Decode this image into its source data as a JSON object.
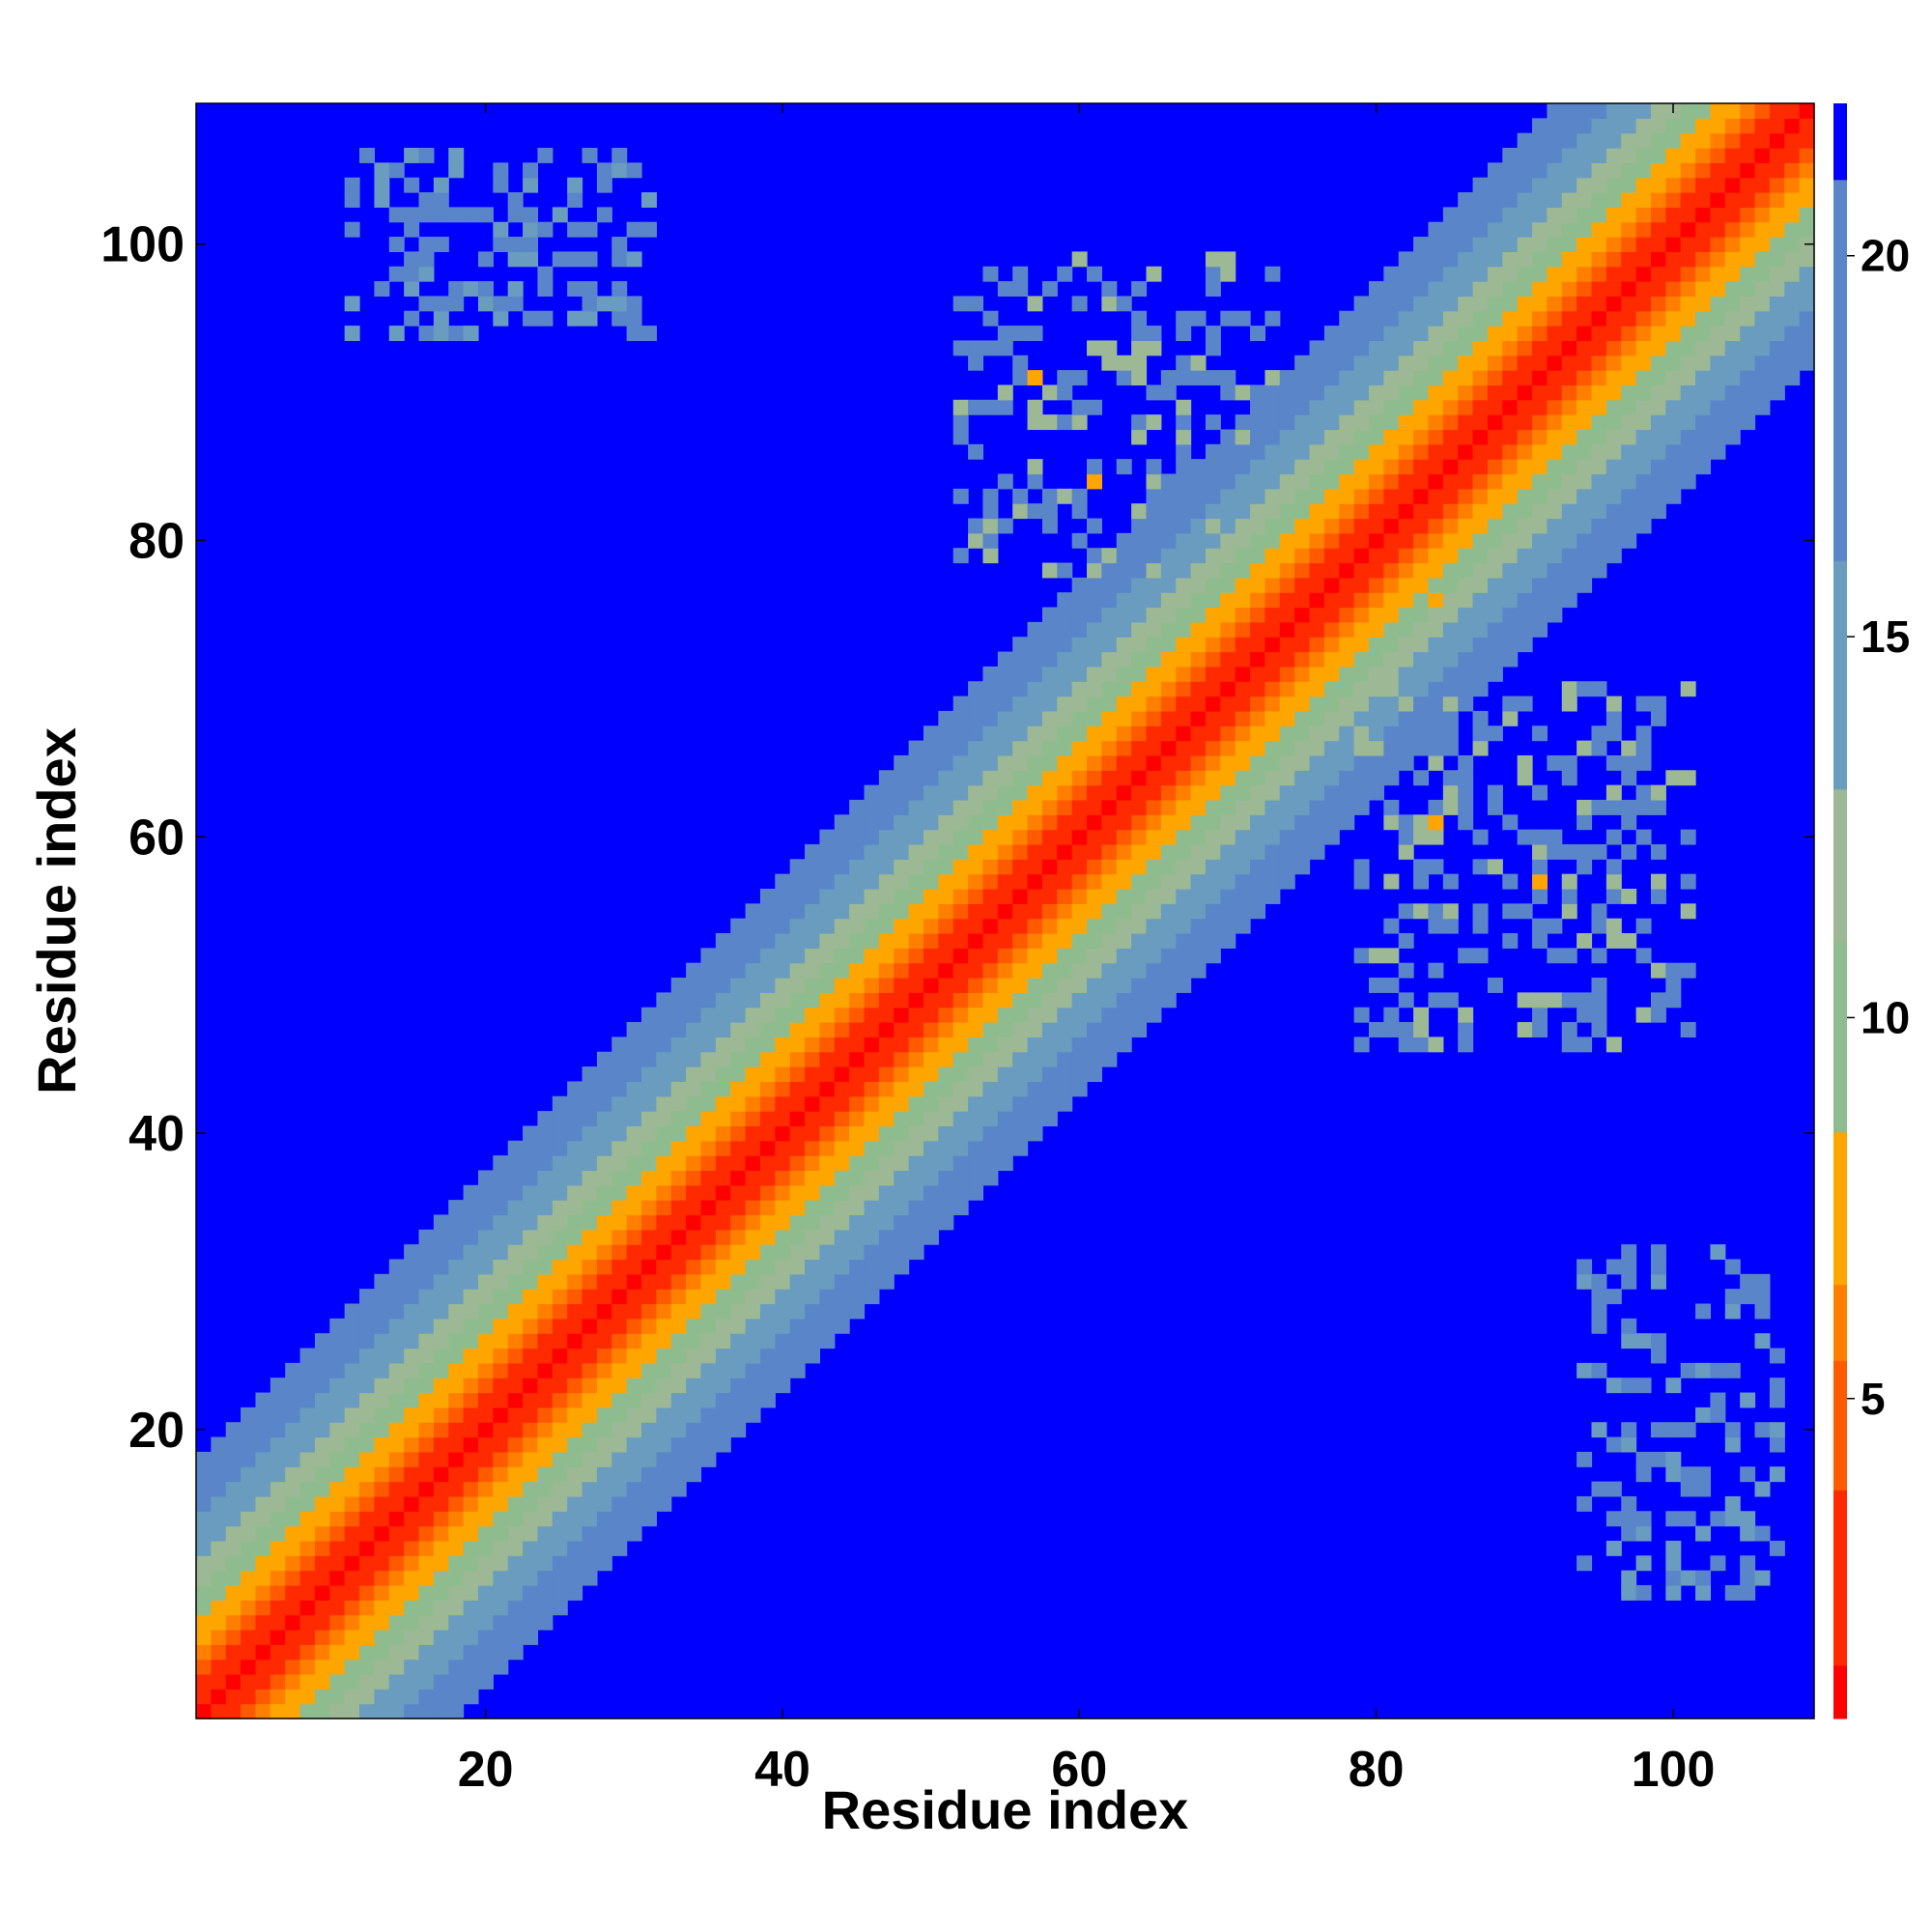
{
  "chart_data": {
    "type": "heatmap",
    "title": "",
    "xlabel": "Residue index",
    "ylabel": "Residue index",
    "xlim": [
      1,
      109
    ],
    "ylim": [
      1,
      109
    ],
    "x_ticks": [
      20,
      40,
      60,
      80,
      100
    ],
    "y_ticks": [
      20,
      40,
      60,
      80,
      100
    ],
    "colorbar": {
      "ticks": [
        5,
        10,
        15,
        20
      ],
      "range": [
        0,
        22
      ],
      "colors": [
        "#ff0000",
        "#ff2a00",
        "#ff5a00",
        "#ff8000",
        "#ffa500",
        "#8fbc8f",
        "#9cb894",
        "#6a9cbf",
        "#5b85c9",
        "#0000ff"
      ]
    },
    "matrix_description": "Symmetric distance map between residues; distance grows with |i-j| along the diagonal band, saturating at 22 (blue) beyond ~18 residues.",
    "off_diagonal_contacts": [
      {
        "x": 57,
        "y": 91,
        "value": 7
      },
      {
        "x": 61,
        "y": 84,
        "value": 7
      },
      {
        "x": 84,
        "y": 76,
        "value": 7
      },
      {
        "x": 84,
        "y": 61,
        "value": 7
      },
      {
        "x": 91,
        "y": 57,
        "value": 7
      }
    ],
    "contact_clusters": [
      {
        "x_range": [
          52,
          73
        ],
        "y_range": [
          78,
          99
        ],
        "value": 17
      },
      {
        "x_range": [
          79,
          101
        ],
        "y_range": [
          46,
          70
        ],
        "value": 17
      },
      {
        "x_range": [
          11,
          31
        ],
        "y_range": [
          94,
          106
        ],
        "value": 18
      },
      {
        "x_range": [
          94,
          107
        ],
        "y_range": [
          9,
          32
        ],
        "value": 18
      }
    ]
  }
}
